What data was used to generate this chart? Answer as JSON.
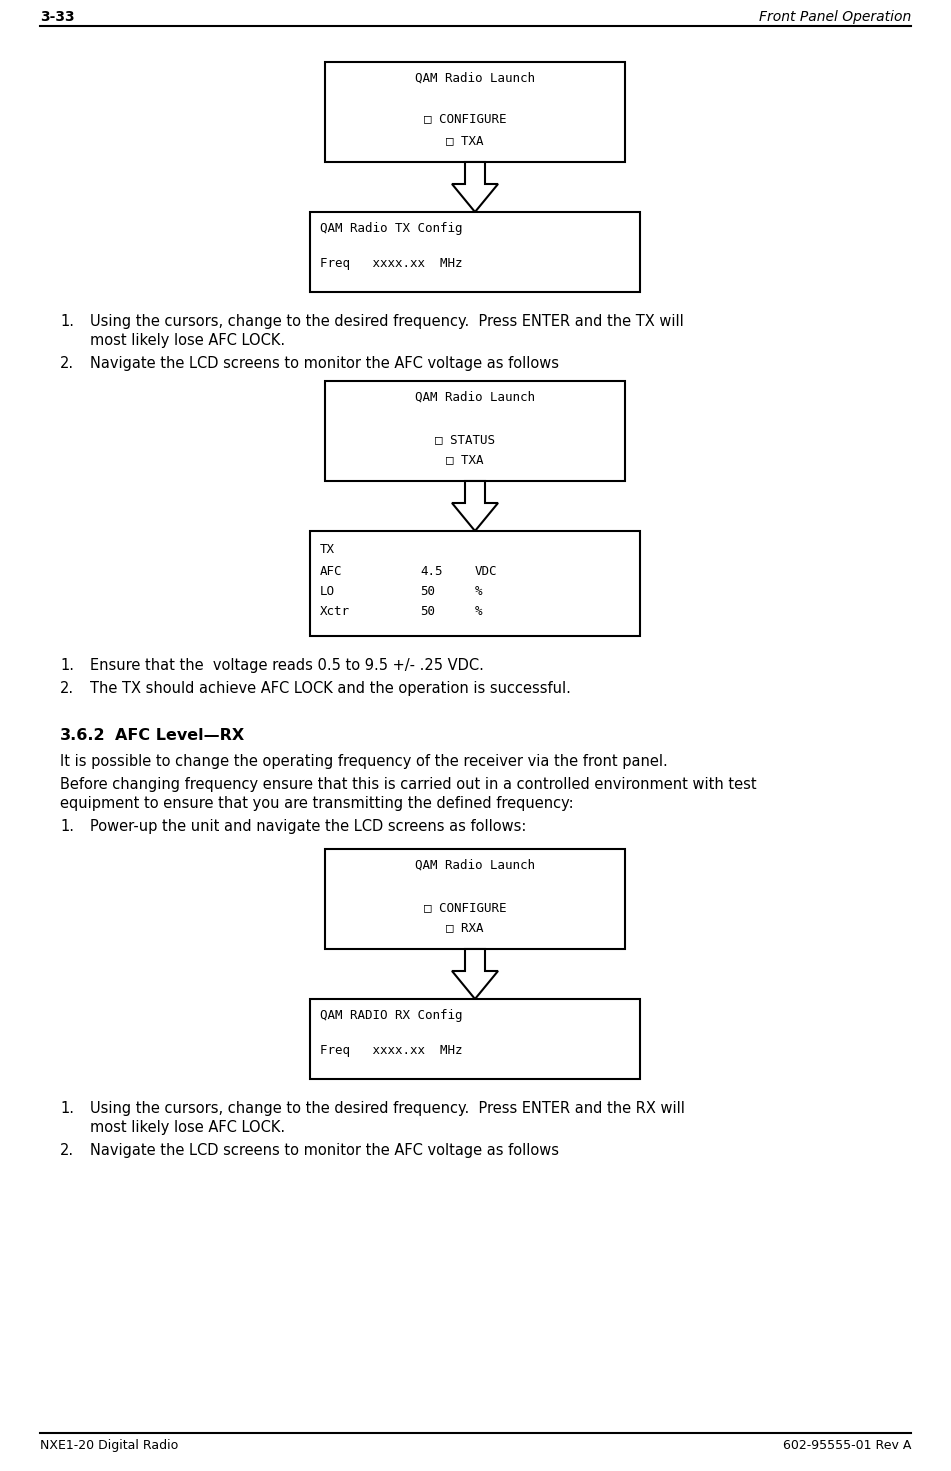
{
  "header_left": "3-33",
  "header_right": "Front Panel Operation",
  "footer_left": "NXE1-20 Digital Radio",
  "footer_right": "602-95555-01 Rev A",
  "box1_title": "QAM Radio Launch",
  "box1_lines": [
    "□ CONFIGURE",
    "□ TXA"
  ],
  "box2_title": "QAM Radio TX Config",
  "box2_lines": [
    "Freq   xxxx.xx  MHz"
  ],
  "box3_title": "QAM Radio Launch",
  "box3_lines": [
    "□ STATUS",
    "□ TXA"
  ],
  "box4_line0": "TX",
  "box4_line1": "AFC",
  "box4_val1": "4.5",
  "box4_unit1": "VDC",
  "box4_line2": "LO",
  "box4_val2": "50",
  "box4_unit2": "%",
  "box4_line3": "Xctr",
  "box4_val3": "50",
  "box4_unit3": "%",
  "section_num": "3.6.2",
  "section_title": "AFC Level—RX",
  "para1": "It is possible to change the operating frequency of the receiver via the front panel.",
  "para2a": "Before changing frequency ensure that this is carried out in a controlled environment with test",
  "para2b": "equipment to ensure that you are transmitting the defined frequency:",
  "box5_title": "QAM Radio Launch",
  "box5_lines": [
    "□ CONFIGURE",
    "□ RXA"
  ],
  "box6_title": "QAM RADIO RX Config",
  "box6_lines": [
    "Freq   xxxx.xx  MHz"
  ],
  "bg_color": "#ffffff",
  "text_color": "#000000"
}
